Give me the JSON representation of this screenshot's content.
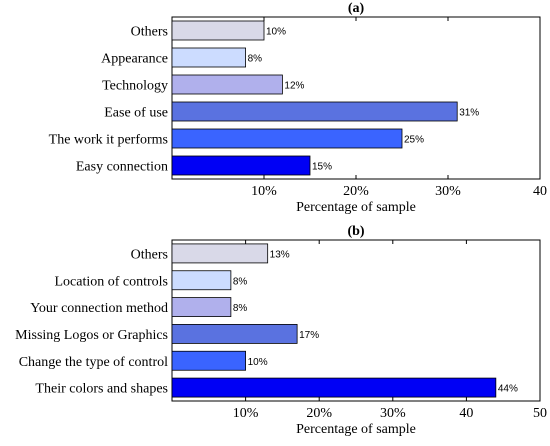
{
  "chart_data": [
    {
      "type": "bar",
      "orientation": "horizontal",
      "title": "(a)",
      "xlabel": "Percentage of sample",
      "ylabel": "",
      "xlim": [
        0,
        40
      ],
      "xticks": [
        "10%",
        "20%",
        "30%",
        "40"
      ],
      "categories": [
        "Others",
        "Appearance",
        "Technology",
        "Ease of use",
        "The work it performs",
        "Easy connection"
      ],
      "values": [
        10,
        8,
        12,
        31,
        25,
        15
      ],
      "data_labels": [
        "10%",
        "8%",
        "12%",
        "31%",
        "25%",
        "15%"
      ],
      "colors": [
        "#d9d9e8",
        "#ccdcff",
        "#b0b0ec",
        "#5a72e0",
        "#3a64ff",
        "#0000f5"
      ],
      "grid": false,
      "legend": "none"
    },
    {
      "type": "bar",
      "orientation": "horizontal",
      "title": "(b)",
      "xlabel": "Percentage of sample",
      "ylabel": "",
      "xlim": [
        0,
        50
      ],
      "xticks": [
        "10%",
        "20%",
        "30%",
        "40",
        "50"
      ],
      "categories": [
        "Others",
        "Location of controls",
        "Your connection method",
        "Missing Logos or Graphics",
        "Change the type of control",
        "Their colors and shapes"
      ],
      "values": [
        13,
        8,
        8,
        17,
        10,
        44
      ],
      "data_labels": [
        "13%",
        "8%",
        "8%",
        "17%",
        "10%",
        "44%"
      ],
      "colors": [
        "#d9d9e8",
        "#ccdcff",
        "#b0b0ec",
        "#5a72e0",
        "#3a64ff",
        "#0000f5"
      ],
      "grid": false,
      "legend": "none"
    }
  ]
}
